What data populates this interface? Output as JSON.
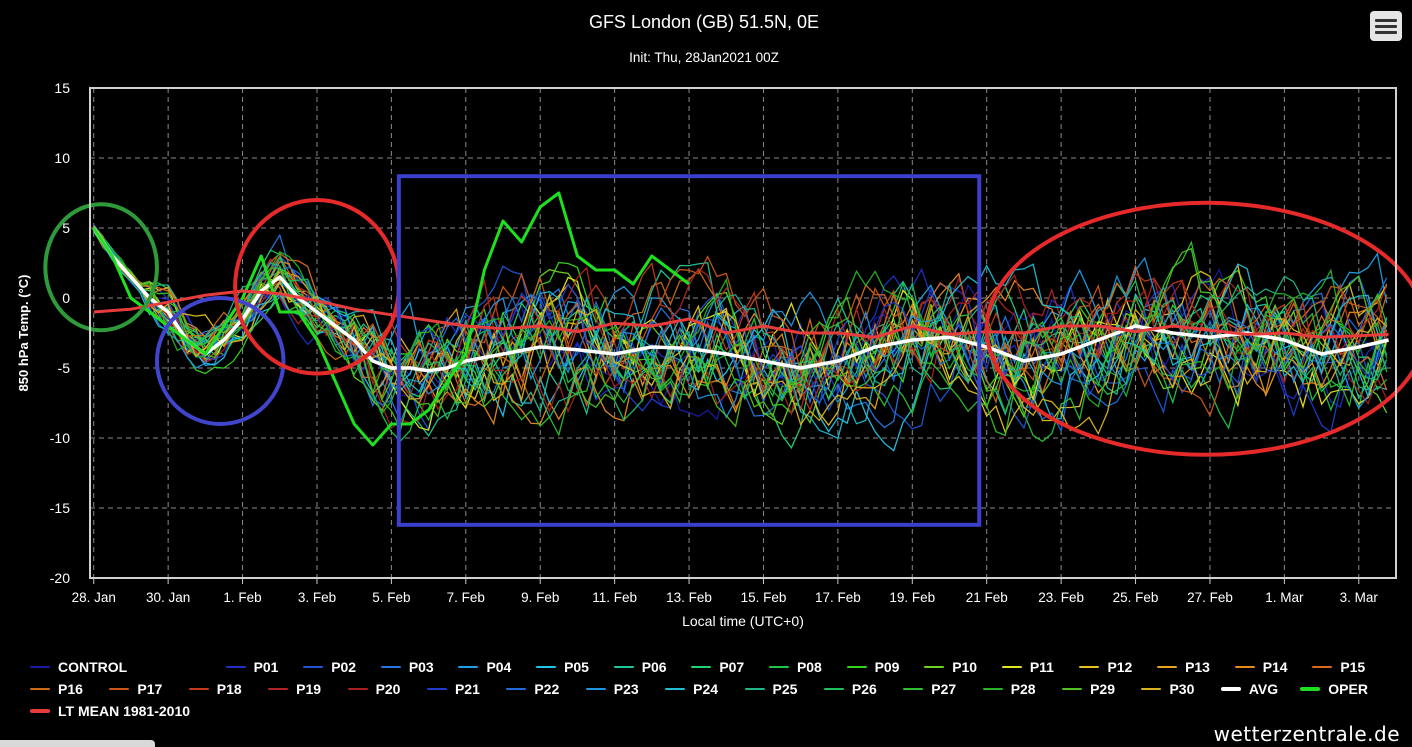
{
  "chart_data": {
    "type": "line",
    "title": "GFS London (GB) 51.5N, 0E",
    "subtitle": "Init: Thu, 28Jan2021 00Z",
    "xlabel": "Local time (UTC+0)",
    "ylabel": "850 hPa Temp. (°C)",
    "ylim": [
      -20,
      15
    ],
    "yticks": [
      15,
      10,
      5,
      0,
      -5,
      -10,
      -15,
      -20
    ],
    "xlim": [
      -0.1,
      35.0
    ],
    "x_tick_positions": [
      0,
      2,
      4,
      6,
      8,
      10,
      12,
      14,
      16,
      18,
      20,
      22,
      24,
      26,
      28,
      30,
      32,
      34
    ],
    "x_tick_labels": [
      "28. Jan",
      "30. Jan",
      "1. Feb",
      "3. Feb",
      "5. Feb",
      "7. Feb",
      "9. Feb",
      "11. Feb",
      "13. Feb",
      "15. Feb",
      "17. Feb",
      "19. Feb",
      "21 Feb",
      "23. Feb",
      "25. Feb",
      "27. Feb",
      "1. Mar",
      "3. Mar"
    ],
    "grid": true,
    "legend_placement": "bottom",
    "series_colors": {
      "CONTROL": "#1a1aa8",
      "P01": "#1f2fc2",
      "P02": "#1f55d6",
      "P03": "#2477e0",
      "P04": "#1fa0e6",
      "P05": "#22c6e6",
      "P06": "#1ec79a",
      "P07": "#1fd46e",
      "P08": "#1ec745",
      "P09": "#35d41f",
      "P10": "#6ed41f",
      "P11": "#e6e61f",
      "P12": "#e6c21f",
      "P13": "#e6a31f",
      "P14": "#e68a1f",
      "P15": "#d96a1f",
      "P16": "#cc6a1a",
      "P17": "#c9561a",
      "P18": "#c23a1a",
      "P19": "#b02424",
      "P20": "#a82020",
      "P21": "#1f3ccc",
      "P22": "#1f6bd9",
      "P23": "#1f95e0",
      "P24": "#1fbcd4",
      "P25": "#1fb58a",
      "P26": "#1fbf5c",
      "P27": "#2fc02f",
      "P28": "#24b324",
      "P29": "#4ec21f",
      "P30": "#d9b21f",
      "AVG": "#ffffff",
      "OPER": "#1fe01f",
      "LT MEAN 1981-2010": "#e63c3c"
    },
    "series": [
      {
        "name": "AVG",
        "x": [
          0,
          0.5,
          1,
          1.5,
          2,
          2.5,
          3,
          3.5,
          4,
          4.5,
          5,
          5.5,
          6,
          6.5,
          7,
          7.5,
          8,
          8.5,
          9,
          9.5,
          10,
          11,
          12,
          13,
          14,
          15,
          16,
          17,
          18,
          19,
          20,
          21,
          22,
          23,
          24,
          25,
          26,
          27,
          28,
          29,
          30,
          31,
          32,
          33,
          34,
          34.8
        ],
        "y": [
          5,
          3,
          1.5,
          0,
          -1,
          -3,
          -4,
          -3,
          -1.5,
          0.5,
          1.5,
          0,
          -1,
          -2,
          -3,
          -4.5,
          -5,
          -5,
          -5.2,
          -5,
          -4.5,
          -4,
          -3.5,
          -3.7,
          -4,
          -3.5,
          -3.6,
          -4,
          -4.5,
          -5,
          -4.5,
          -3.5,
          -3,
          -2.8,
          -3.5,
          -4.5,
          -4,
          -3,
          -2,
          -2.5,
          -2.8,
          -2.5,
          -3,
          -4,
          -3.5,
          -3
        ]
      },
      {
        "name": "OPER",
        "x": [
          0,
          0.5,
          1,
          1.5,
          2,
          2.5,
          3,
          3.5,
          4,
          4.5,
          5,
          5.5,
          6,
          6.5,
          7,
          7.5,
          8,
          8.5,
          9,
          9.5,
          10,
          10.5,
          11,
          11.5,
          12,
          12.5,
          13,
          13.5,
          14,
          14.5,
          15,
          15.5,
          16
        ],
        "y": [
          5,
          3,
          0,
          -1,
          -2,
          -3,
          -4,
          -2,
          0,
          3,
          -1,
          -1,
          -3,
          -6,
          -9,
          -10.5,
          -9,
          -9,
          -8,
          -6,
          -4,
          2,
          5.5,
          4,
          6.5,
          7.5,
          3,
          2,
          2,
          1,
          3,
          2,
          1
        ]
      },
      {
        "name": "LT MEAN 1981-2010",
        "x": [
          0,
          1,
          2,
          3,
          4,
          5,
          6,
          7,
          8,
          9,
          10,
          11,
          12,
          13,
          14,
          15,
          16,
          17,
          18,
          19,
          20,
          21,
          22,
          23,
          24,
          25,
          26,
          27,
          28,
          29,
          30,
          31,
          32,
          33,
          34,
          34.8
        ],
        "y": [
          -1,
          -0.8,
          -0.3,
          0.2,
          0.5,
          0.3,
          -0.2,
          -0.8,
          -1.2,
          -1.6,
          -2.0,
          -2.2,
          -2.0,
          -2.4,
          -1.8,
          -2.0,
          -1.5,
          -2.5,
          -2.0,
          -2.5,
          -2.5,
          -2.8,
          -2.0,
          -2.6,
          -2.4,
          -2.5,
          -2.0,
          -2.0,
          -2.4,
          -2.0,
          -2.3,
          -2.6,
          -2.5,
          -2.8,
          -2.7,
          -2.6
        ]
      }
    ],
    "ensemble_members": [
      "CONTROL",
      "P01",
      "P02",
      "P03",
      "P04",
      "P05",
      "P06",
      "P07",
      "P08",
      "P09",
      "P10",
      "P11",
      "P12",
      "P13",
      "P14",
      "P15",
      "P16",
      "P17",
      "P18",
      "P19",
      "P20",
      "P21",
      "P22",
      "P23",
      "P24",
      "P25",
      "P26",
      "P27",
      "P28",
      "P29",
      "P30"
    ],
    "annotations": [
      {
        "shape": "circle",
        "color": "#2e9a3a",
        "x": 0.2,
        "y": 2.2,
        "rx": 1.5,
        "ry": 4.5
      },
      {
        "shape": "circle",
        "color": "#4045cc",
        "x": 3.4,
        "y": -4.5,
        "rx": 1.7,
        "ry": 4.5
      },
      {
        "shape": "circle",
        "color": "#e62a2a",
        "x": 6.0,
        "y": 0.8,
        "rx": 2.2,
        "ry": 6.2
      },
      {
        "shape": "rectangle",
        "color": "#3c3fcc",
        "x0": 8.2,
        "x1": 23.8,
        "y0": -16.2,
        "y1": 8.7
      },
      {
        "shape": "ellipse",
        "color": "#e62a2a",
        "x": 29.9,
        "y": -2.2,
        "rx": 5.9,
        "ry": 9.0
      }
    ]
  },
  "legend": {
    "rows": [
      [
        "CONTROL",
        "P01",
        "P02",
        "P03",
        "P04",
        "P05",
        "P06",
        "P07",
        "P08",
        "P09",
        "P10",
        "P11",
        "P12",
        "P13",
        "P14",
        "P15"
      ],
      [
        "P16",
        "P17",
        "P18",
        "P19",
        "P20",
        "P21",
        "P22",
        "P23",
        "P24",
        "P25",
        "P26",
        "P27",
        "P28",
        "P29",
        "P30",
        "AVG",
        "OPER"
      ],
      [
        "LT MEAN 1981-2010"
      ]
    ]
  },
  "brand": "wetterzentrale.de",
  "menu_icon": "hamburger-menu-icon"
}
